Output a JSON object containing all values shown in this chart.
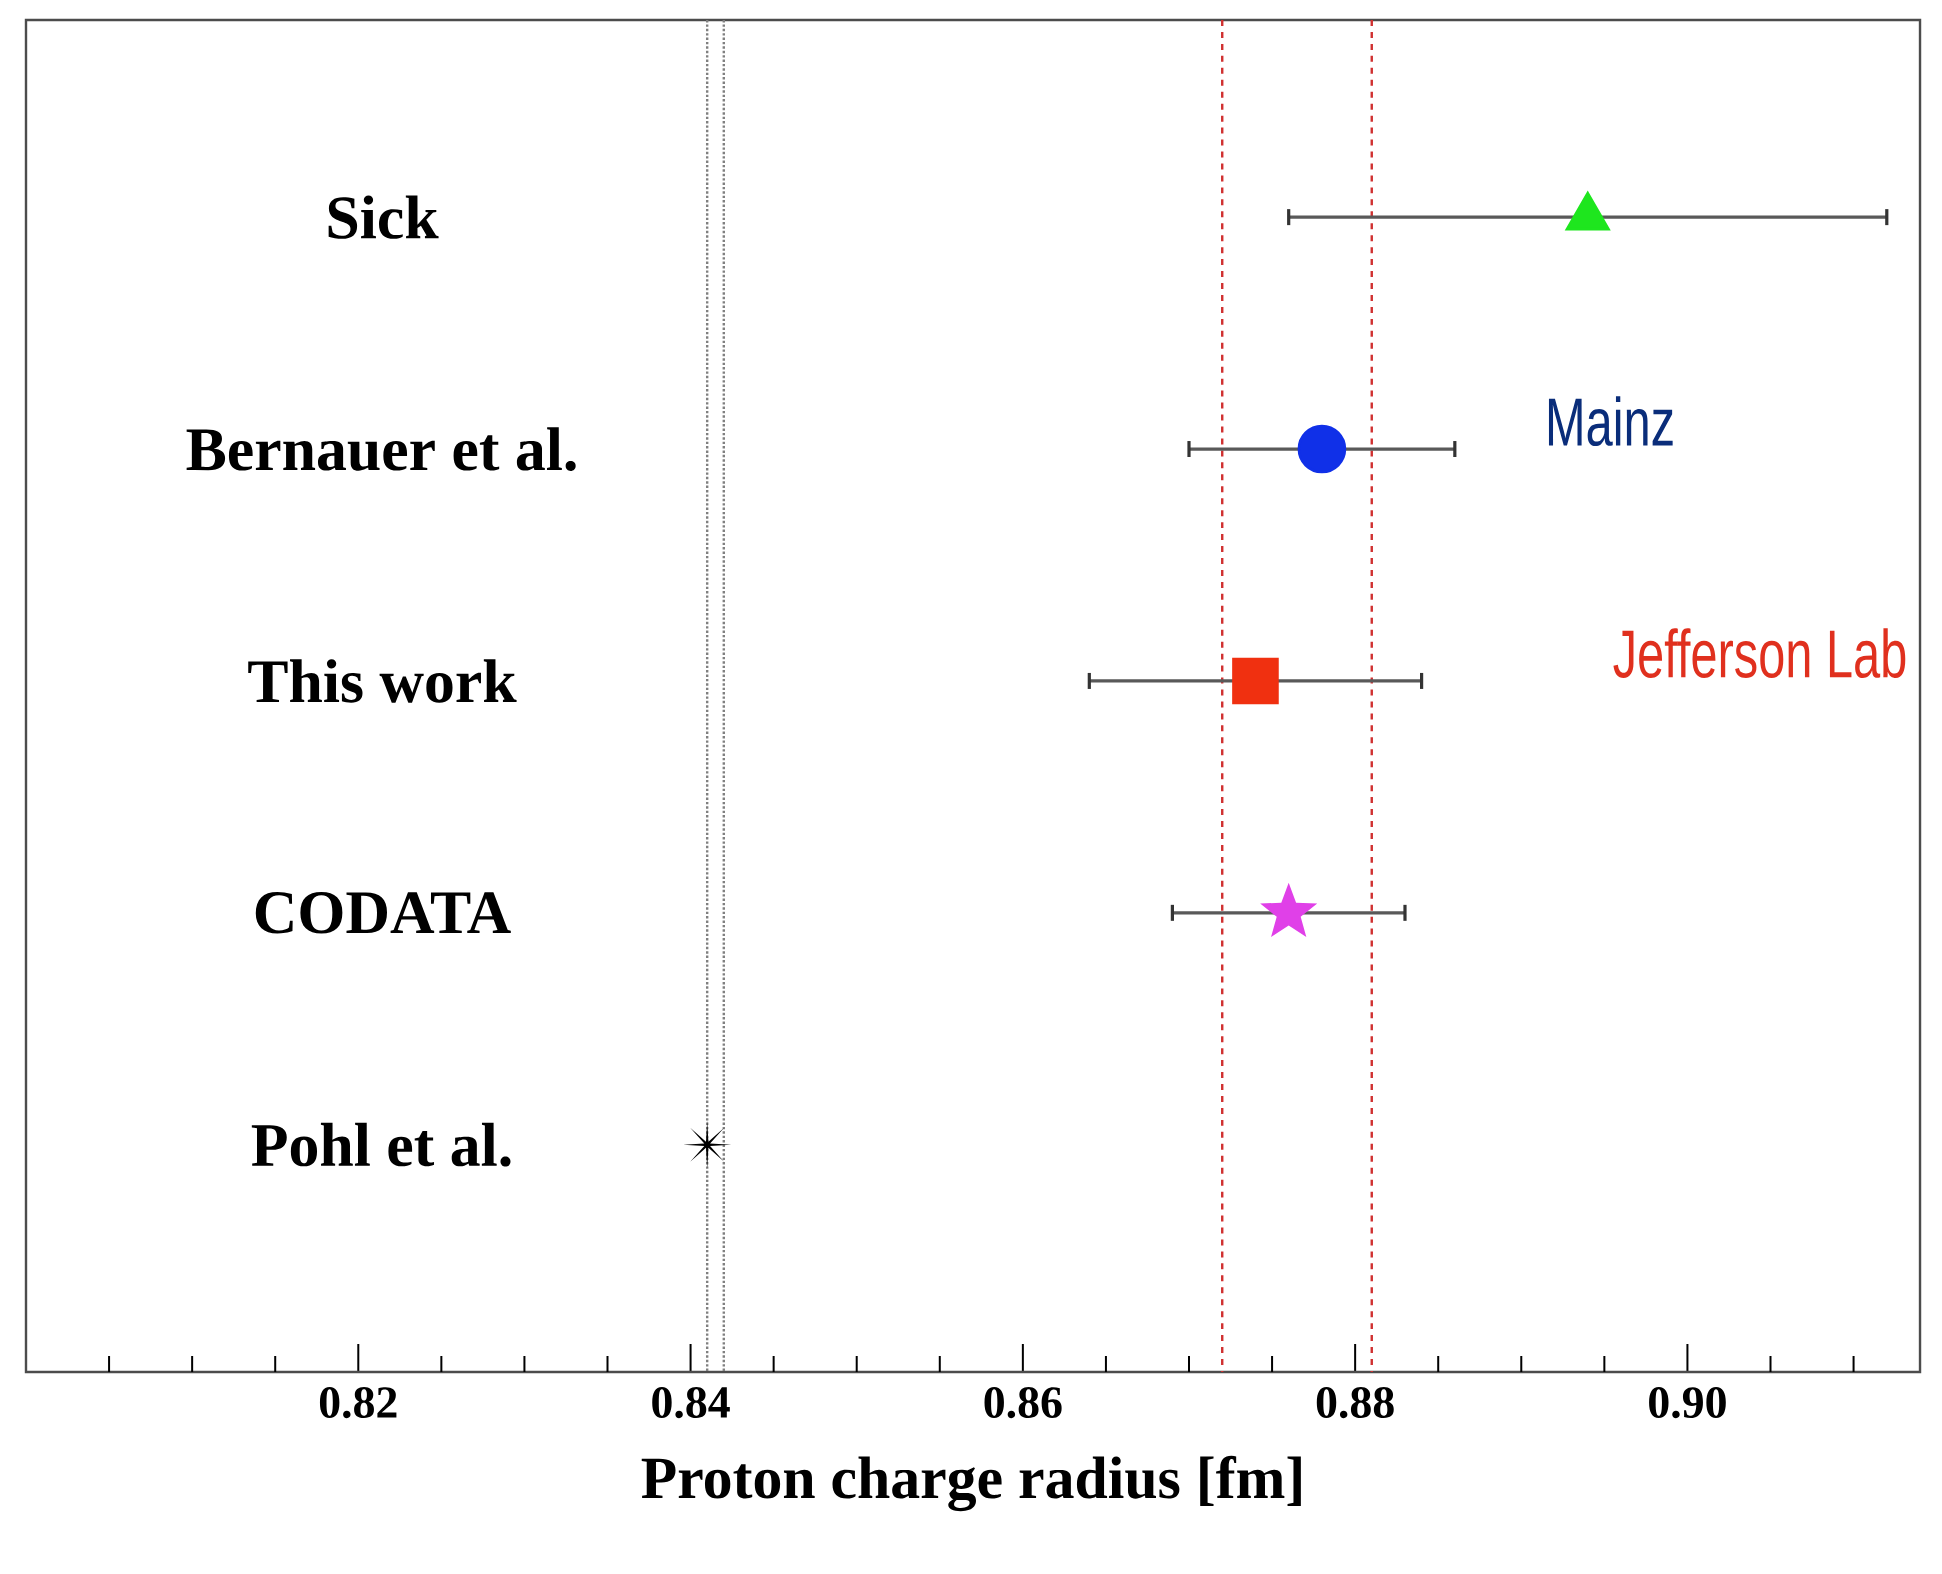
{
  "chart_data": {
    "type": "scatter",
    "orientation": "horizontal",
    "categories": [
      "Sick",
      "Bernauer et al.",
      "This work",
      "CODATA",
      "Pohl et al."
    ],
    "xlabel": "Proton charge radius [fm]",
    "xlim": [
      0.8,
      0.914
    ],
    "xticks": [
      {
        "value": 0.805,
        "label": null
      },
      {
        "value": 0.81,
        "label": null
      },
      {
        "value": 0.815,
        "label": null
      },
      {
        "value": 0.82,
        "label": "0.82"
      },
      {
        "value": 0.825,
        "label": null
      },
      {
        "value": 0.83,
        "label": null
      },
      {
        "value": 0.835,
        "label": null
      },
      {
        "value": 0.84,
        "label": "0.84"
      },
      {
        "value": 0.845,
        "label": null
      },
      {
        "value": 0.85,
        "label": null
      },
      {
        "value": 0.855,
        "label": null
      },
      {
        "value": 0.86,
        "label": "0.86"
      },
      {
        "value": 0.865,
        "label": null
      },
      {
        "value": 0.87,
        "label": null
      },
      {
        "value": 0.875,
        "label": null
      },
      {
        "value": 0.88,
        "label": "0.88"
      },
      {
        "value": 0.885,
        "label": null
      },
      {
        "value": 0.89,
        "label": null
      },
      {
        "value": 0.895,
        "label": null
      },
      {
        "value": 0.9,
        "label": "0.90"
      },
      {
        "value": 0.905,
        "label": null
      },
      {
        "value": 0.91,
        "label": null
      }
    ],
    "series": [
      {
        "color": "#1ee61e",
        "marker": "triangle",
        "values": [
          0.894,
          null,
          null,
          null,
          null
        ],
        "errors": [
          0.018,
          null,
          null,
          null,
          null
        ]
      },
      {
        "color": "#1030e8",
        "marker": "circle",
        "values": [
          null,
          0.878,
          null,
          null,
          null
        ],
        "errors": [
          null,
          0.008,
          null,
          null,
          null
        ]
      },
      {
        "color": "#f03010",
        "marker": "square",
        "values": [
          null,
          null,
          0.874,
          null,
          null
        ],
        "errors": [
          null,
          null,
          0.01,
          null,
          null
        ]
      },
      {
        "color": "#e040e8",
        "marker": "star",
        "values": [
          null,
          null,
          null,
          0.876,
          null
        ],
        "errors": [
          null,
          null,
          null,
          0.007,
          null
        ]
      },
      {
        "color": "#000000",
        "marker": "cross",
        "values": [
          null,
          null,
          null,
          null,
          0.841
        ]
      }
    ],
    "ref_lines": [
      {
        "axis": "x",
        "value": 0.841,
        "color": "#808080",
        "line_style": "dotted"
      },
      {
        "axis": "x",
        "value": 0.842,
        "color": "#808080",
        "line_style": "dotted"
      },
      {
        "axis": "x",
        "value": 0.872,
        "color": "#d03030",
        "line_style": "dashed"
      },
      {
        "axis": "x",
        "value": 0.881,
        "color": "#d03030",
        "line_style": "dashed"
      }
    ],
    "annotations": [
      "Mainz",
      "Jefferson Lab"
    ]
  }
}
